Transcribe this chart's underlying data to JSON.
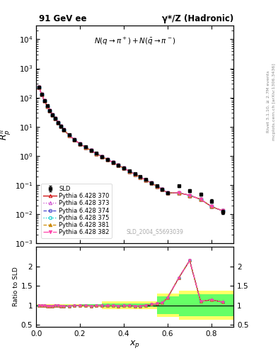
{
  "title_left": "91 GeV ee",
  "title_right": "γ*/Z (Hadronic)",
  "ylabel_main": "$R^{\\pi}_{p}$",
  "annotation": "$N(q\\rightarrow\\pi^+)+N(\\bar{q}\\rightarrow\\pi^-)$",
  "dataset_label": "SLD_2004_S5693039",
  "ylabel_ratio": "Ratio to SLD",
  "xlabel": "$x_p$",
  "right_label1": "Rivet 3.1.10, ≥ 2.7M events",
  "right_label2": "mcplots.cern.ch [arXiv:1306.3436]",
  "sld_x": [
    0.013,
    0.025,
    0.037,
    0.05,
    0.062,
    0.075,
    0.087,
    0.1,
    0.112,
    0.125,
    0.15,
    0.175,
    0.2,
    0.225,
    0.25,
    0.275,
    0.3,
    0.325,
    0.35,
    0.375,
    0.4,
    0.425,
    0.45,
    0.475,
    0.5,
    0.525,
    0.55,
    0.575,
    0.6,
    0.65,
    0.7,
    0.75,
    0.8,
    0.85
  ],
  "sld_y": [
    230,
    130,
    80,
    52,
    36,
    26,
    19,
    14,
    10.5,
    8.0,
    5.2,
    3.6,
    2.6,
    2.0,
    1.55,
    1.22,
    0.95,
    0.76,
    0.6,
    0.48,
    0.38,
    0.3,
    0.24,
    0.19,
    0.152,
    0.12,
    0.093,
    0.072,
    0.054,
    0.092,
    0.065,
    0.048,
    0.028,
    0.012
  ],
  "sld_yerr": [
    10,
    6,
    3.5,
    2.2,
    1.5,
    1.1,
    0.8,
    0.6,
    0.45,
    0.34,
    0.22,
    0.15,
    0.11,
    0.085,
    0.065,
    0.052,
    0.04,
    0.032,
    0.025,
    0.02,
    0.016,
    0.013,
    0.01,
    0.008,
    0.0065,
    0.0051,
    0.004,
    0.0031,
    0.0023,
    0.01,
    0.007,
    0.005,
    0.004,
    0.002
  ],
  "mc_x": [
    0.013,
    0.025,
    0.037,
    0.05,
    0.062,
    0.075,
    0.087,
    0.1,
    0.112,
    0.125,
    0.15,
    0.175,
    0.2,
    0.225,
    0.25,
    0.275,
    0.3,
    0.325,
    0.35,
    0.375,
    0.4,
    0.425,
    0.45,
    0.475,
    0.5,
    0.525,
    0.55,
    0.575,
    0.6,
    0.65,
    0.7,
    0.75,
    0.8,
    0.85
  ],
  "mc_y": [
    228,
    128,
    79,
    51,
    35,
    25.5,
    18.8,
    13.8,
    10.3,
    7.85,
    5.1,
    3.55,
    2.57,
    1.98,
    1.52,
    1.2,
    0.935,
    0.748,
    0.592,
    0.472,
    0.374,
    0.296,
    0.236,
    0.186,
    0.148,
    0.117,
    0.091,
    0.07,
    0.053,
    0.054,
    0.044,
    0.032,
    0.018,
    0.013
  ],
  "series": [
    {
      "label": "Pythia 6.428 370",
      "color": "#cc0000",
      "linestyle": "-",
      "marker": "^",
      "mfc": "none",
      "mec": "#cc0000"
    },
    {
      "label": "Pythia 6.428 373",
      "color": "#cc44cc",
      "linestyle": ":",
      "marker": "^",
      "mfc": "none",
      "mec": "#cc44cc"
    },
    {
      "label": "Pythia 6.428 374",
      "color": "#4444cc",
      "linestyle": "--",
      "marker": "o",
      "mfc": "none",
      "mec": "#4444cc"
    },
    {
      "label": "Pythia 6.428 375",
      "color": "#00cccc",
      "linestyle": ":",
      "marker": "o",
      "mfc": "none",
      "mec": "#00cccc"
    },
    {
      "label": "Pythia 6.428 381",
      "color": "#cc8800",
      "linestyle": "--",
      "marker": "^",
      "mfc": "#cc8800",
      "mec": "#cc8800"
    },
    {
      "label": "Pythia 6.428 382",
      "color": "#ff44aa",
      "linestyle": "-.",
      "marker": "v",
      "mfc": "#ff44aa",
      "mec": "#ff44aa"
    }
  ],
  "ratio_x": [
    0.013,
    0.025,
    0.037,
    0.05,
    0.062,
    0.075,
    0.087,
    0.1,
    0.112,
    0.125,
    0.15,
    0.175,
    0.2,
    0.225,
    0.25,
    0.275,
    0.3,
    0.325,
    0.35,
    0.375,
    0.4,
    0.425,
    0.45,
    0.475,
    0.5,
    0.525,
    0.55,
    0.575,
    0.6,
    0.65,
    0.7,
    0.75,
    0.8,
    0.85
  ],
  "ratio_y": [
    1.0,
    0.985,
    0.988,
    0.981,
    0.972,
    0.981,
    0.989,
    0.986,
    0.981,
    0.981,
    0.981,
    0.986,
    0.989,
    0.99,
    0.981,
    0.984,
    0.984,
    0.984,
    0.987,
    0.983,
    0.984,
    0.987,
    0.983,
    0.979,
    1.0,
    1.02,
    1.04,
    1.06,
    1.2,
    1.7,
    2.15,
    1.1,
    1.14,
    1.08
  ],
  "band_x_edges": [
    0.0,
    0.05,
    0.1,
    0.15,
    0.2,
    0.3,
    0.55,
    0.65,
    0.75,
    0.9
  ],
  "band_yellow_lo": [
    0.975,
    0.972,
    0.97,
    0.968,
    0.965,
    0.9,
    0.7,
    0.62,
    0.62
  ],
  "band_yellow_hi": [
    1.025,
    1.028,
    1.03,
    1.032,
    1.035,
    1.1,
    1.3,
    1.38,
    1.38
  ],
  "band_green_lo": [
    0.988,
    0.986,
    0.984,
    0.982,
    0.98,
    0.95,
    0.78,
    0.72,
    0.72
  ],
  "band_green_hi": [
    1.012,
    1.014,
    1.016,
    1.018,
    1.02,
    1.05,
    1.22,
    1.28,
    1.28
  ],
  "ylim_main": [
    0.001,
    30000.0
  ],
  "ylim_ratio": [
    0.45,
    2.5
  ],
  "xlim": [
    0.0,
    0.9
  ]
}
